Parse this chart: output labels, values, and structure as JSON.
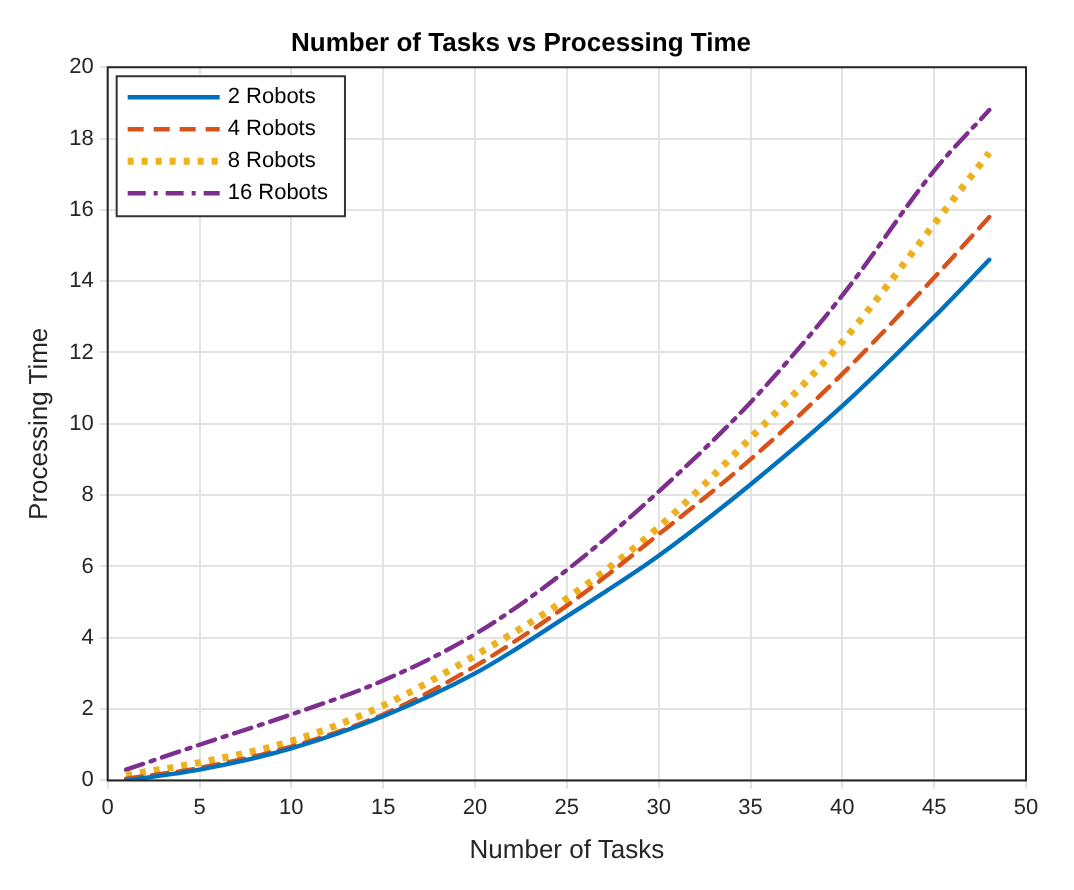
{
  "chart_data": {
    "type": "line",
    "title": "Number of Tasks vs Processing Time",
    "xlabel": "Number of Tasks",
    "ylabel": "Processing Time",
    "x": [
      1,
      5,
      10,
      15,
      20,
      25,
      30,
      35,
      40,
      45,
      48
    ],
    "series": [
      {
        "name": "2 Robots",
        "color": "#0072bd",
        "line_style": "solid",
        "values": [
          0,
          0.3,
          0.9,
          1.8,
          3.0,
          4.6,
          6.3,
          8.3,
          10.5,
          13.0,
          14.6
        ]
      },
      {
        "name": "4 Robots",
        "color": "#d95319",
        "line_style": "dashed",
        "values": [
          0.05,
          0.35,
          0.95,
          1.85,
          3.2,
          4.9,
          6.9,
          9.0,
          11.4,
          14.1,
          15.8
        ]
      },
      {
        "name": "8 Robots",
        "color": "#edb120",
        "line_style": "dotted",
        "values": [
          0.15,
          0.5,
          1.1,
          2.1,
          3.5,
          5.1,
          7.1,
          9.6,
          12.3,
          15.6,
          17.6
        ]
      },
      {
        "name": "16 Robots",
        "color": "#7e2f8e",
        "line_style": "dashdot",
        "values": [
          0.3,
          1.0,
          1.85,
          2.8,
          4.1,
          5.9,
          8.1,
          10.6,
          13.6,
          17.1,
          18.8
        ]
      }
    ],
    "xlim": [
      0,
      50
    ],
    "xticks": [
      0,
      5,
      10,
      15,
      20,
      25,
      30,
      35,
      40,
      45,
      50
    ],
    "ylim": [
      0,
      20
    ],
    "yticks": [
      0,
      2,
      4,
      6,
      8,
      10,
      12,
      14,
      16,
      18,
      20
    ],
    "grid": true,
    "legend": "top left",
    "marker": "none"
  }
}
